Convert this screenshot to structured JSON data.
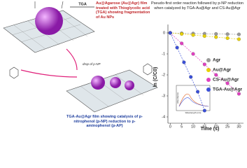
{
  "diagram": {
    "reagent": "TGA",
    "top_caption": "Au@Agarose (Au@Agr) film treated with Thioglycolic acid (TGA) showing fragmentation of Au NPs",
    "drop_label": "drop of p-NP",
    "bottom_caption": "TGA-Au@Agr film showing catalysis of p-nitrophenol (p-NP) reduction to p-aminophenol (p-AP)",
    "inset_y_label": "Absorbance",
    "inset_x_label": "Wavelength (nm)"
  },
  "chart_data": {
    "type": "scatter",
    "title": "Pseudo-first order reaction followed by p-NP reduction when catalyzed by TGA-Au@Agr and CS-Au@Agr",
    "x_label": "Time (s)",
    "y_label": "ln (C/C0)",
    "xlim": [
      -1,
      32
    ],
    "ylim": [
      -4.3,
      0.4
    ],
    "xticks": [
      0,
      5,
      10,
      15,
      20,
      25,
      30
    ],
    "yticks": [
      0,
      -1,
      -2,
      -3,
      -4
    ],
    "legend": "right",
    "series": [
      {
        "name": "Agr",
        "color": "#9a9a9a",
        "x": [
          0,
          5,
          10,
          15,
          20,
          25,
          30
        ],
        "values": [
          0,
          -0.02,
          -0.03,
          -0.04,
          -0.05,
          -0.06,
          -0.07
        ]
      },
      {
        "name": "Au@Agr",
        "color": "#e8d100",
        "x": [
          0,
          5,
          10,
          15,
          20,
          25,
          30
        ],
        "values": [
          0,
          -0.05,
          -0.1,
          -0.15,
          -0.2,
          -0.25,
          -0.3
        ]
      },
      {
        "name": "CS-Au@Agr",
        "color": "#e040c0",
        "x": [
          0,
          5,
          10,
          15,
          20,
          25,
          30
        ],
        "values": [
          0,
          -0.5,
          -1,
          -1.5,
          -2,
          -2.4,
          -2.9
        ]
      },
      {
        "name": "TGA-Au@Agr",
        "color": "#3a4fd8",
        "x": [
          0,
          3,
          6,
          9,
          12,
          15
        ],
        "values": [
          0,
          -0.7,
          -1.4,
          -2.1,
          -2.8,
          -3.7
        ]
      }
    ]
  }
}
